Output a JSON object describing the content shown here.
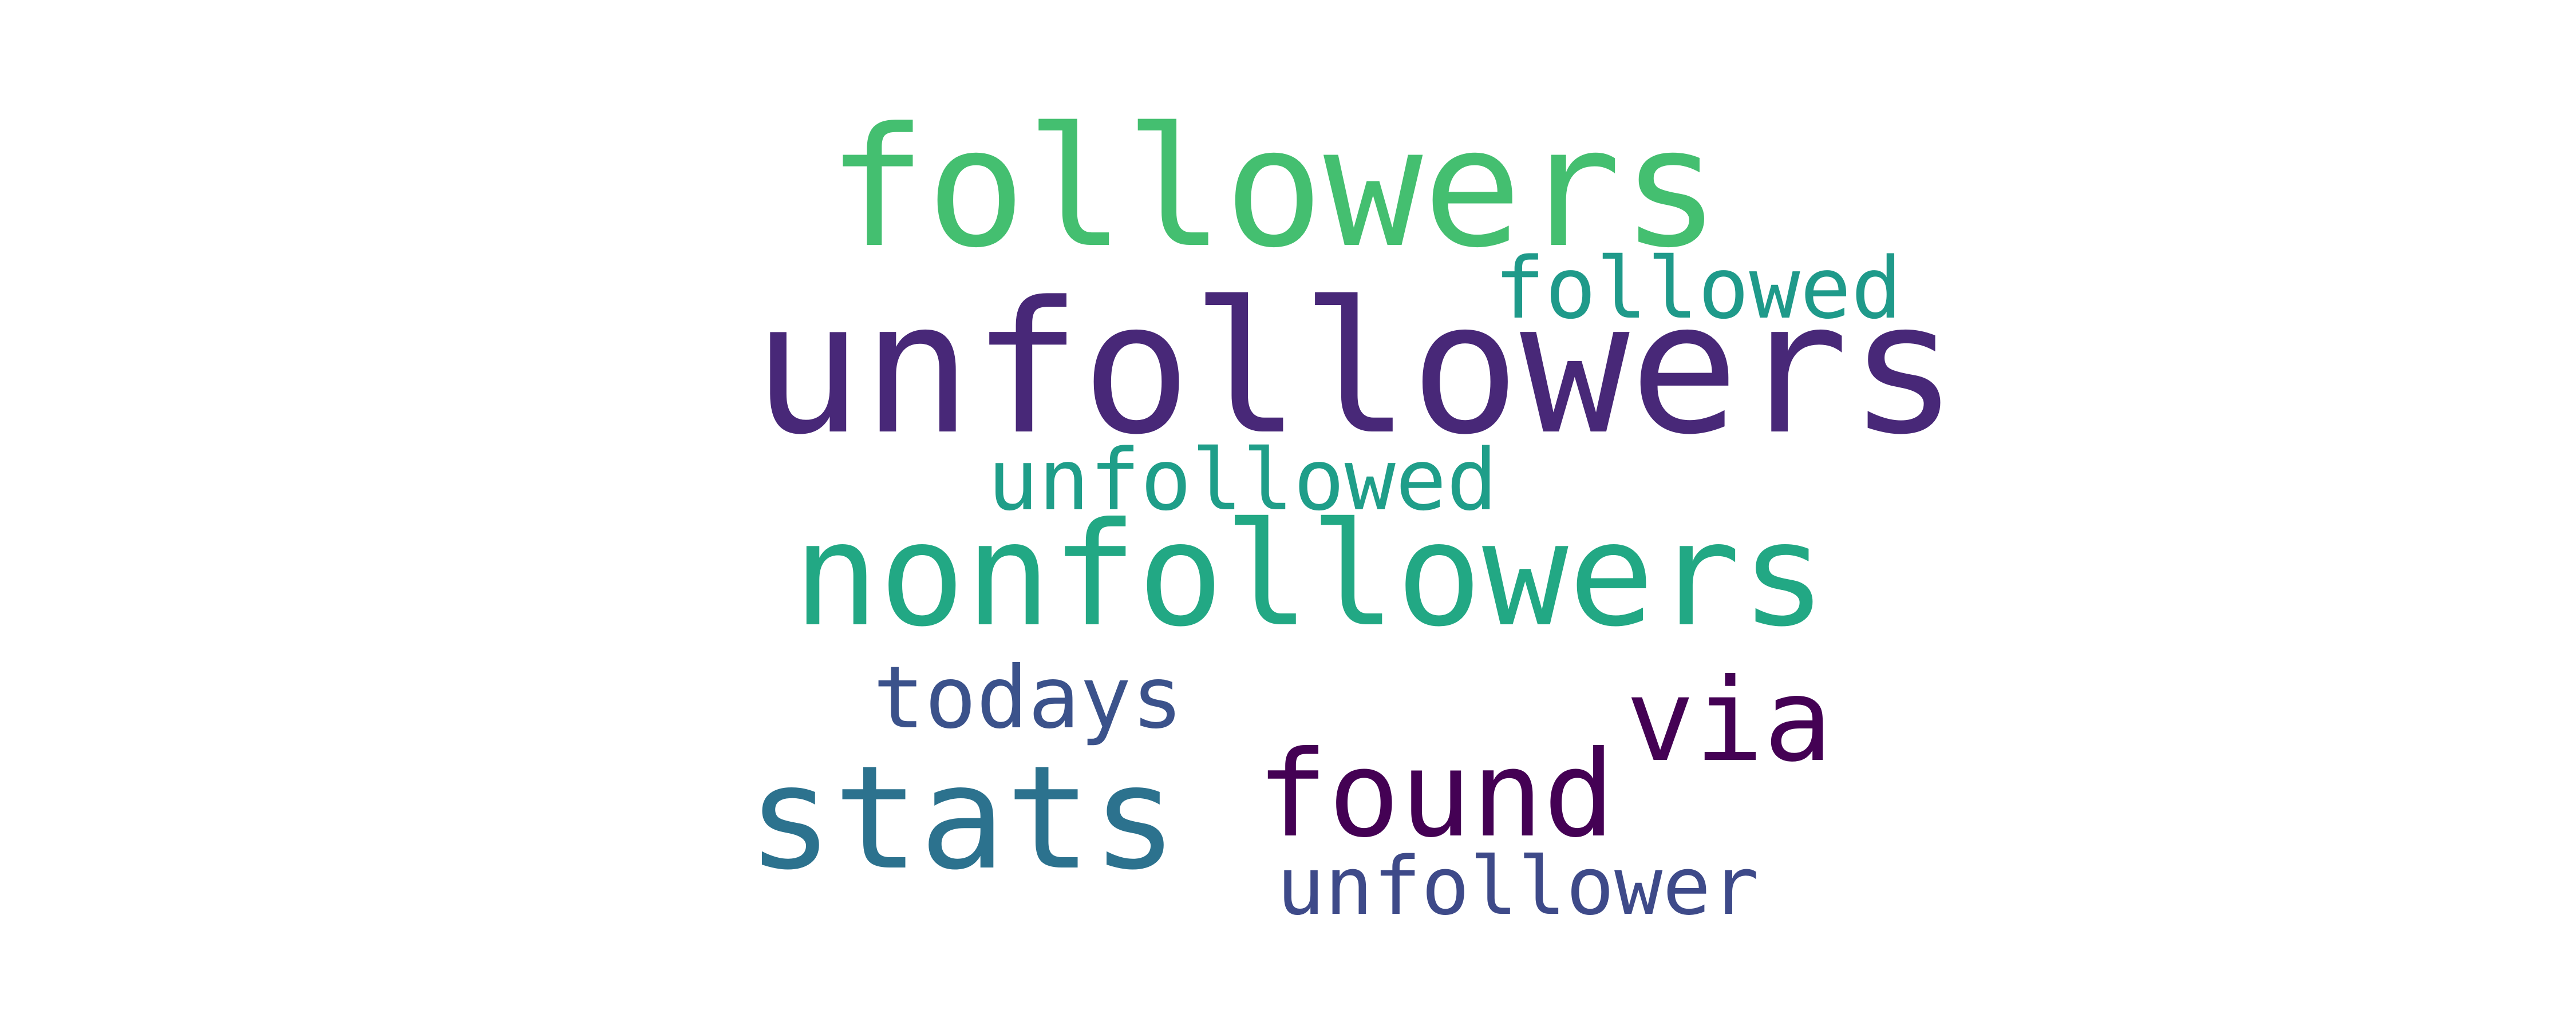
{
  "word_cloud": {
    "background": "#ffffff",
    "words": [
      {
        "text": "unfollowers",
        "color": "#482878"
      },
      {
        "text": "followers",
        "color": "#44bf70"
      },
      {
        "text": "nonfollowers",
        "color": "#22a884"
      },
      {
        "text": "stats",
        "color": "#2c728e"
      },
      {
        "text": "found",
        "color": "#440154"
      },
      {
        "text": "via",
        "color": "#440154"
      },
      {
        "text": "followed",
        "color": "#1f9a8a"
      },
      {
        "text": "unfollowed",
        "color": "#1f9e89"
      },
      {
        "text": "todays",
        "color": "#3b528b"
      },
      {
        "text": "unfollower",
        "color": "#3e4a89"
      }
    ]
  }
}
